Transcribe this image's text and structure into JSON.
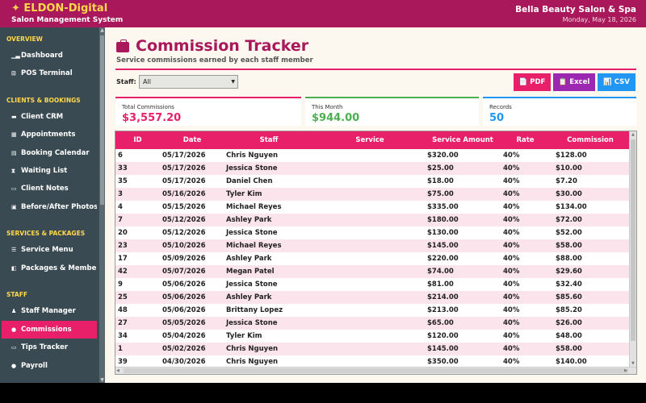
{
  "header": {
    "brand": "✦ ELDON-Digital",
    "brand_sub": "Salon Management System",
    "salon": "Bella Beauty Salon & Spa",
    "date": "Monday, May 18, 2026"
  },
  "sidebar": {
    "sections": [
      {
        "label": "OVERVIEW"
      },
      {
        "label": "CLIENTS & BOOKINGS"
      },
      {
        "label": "SERVICES & PACKAGES"
      },
      {
        "label": "STAFF"
      }
    ],
    "items": [
      {
        "label": "Dashboard",
        "icon": "chart-icon"
      },
      {
        "label": "POS Terminal",
        "icon": "cart-icon"
      },
      {
        "label": "Client CRM",
        "icon": "card-icon"
      },
      {
        "label": "Appointments",
        "icon": "calendar-icon"
      },
      {
        "label": "Booking Calendar",
        "icon": "calendar-grid-icon"
      },
      {
        "label": "Waiting List",
        "icon": "hourglass-icon"
      },
      {
        "label": "Client Notes",
        "icon": "notes-icon"
      },
      {
        "label": "Before/After Photos",
        "icon": "photo-icon"
      },
      {
        "label": "Service Menu",
        "icon": "menu-icon"
      },
      {
        "label": "Packages & Membersh",
        "icon": "package-icon"
      },
      {
        "label": "Staff Manager",
        "icon": "people-icon"
      },
      {
        "label": "Commissions",
        "icon": "money-bag-icon"
      },
      {
        "label": "Tips Tracker",
        "icon": "tips-icon"
      },
      {
        "label": "Payroll",
        "icon": "payroll-icon"
      }
    ],
    "active": "Commissions"
  },
  "page": {
    "title": "Commission Tracker",
    "subtitle": "Service commissions earned by each staff member",
    "filter_label": "Staff:",
    "filter_value": "All"
  },
  "export": {
    "pdf": "📄 PDF",
    "excel": "📋 Excel",
    "csv": "📊 CSV"
  },
  "stats": {
    "total_label": "Total Commissions",
    "total_value": "$3,557.20",
    "month_label": "This Month",
    "month_value": "$944.00",
    "records_label": "Records",
    "records_value": "50"
  },
  "table": {
    "columns": [
      "ID",
      "Date",
      "Staff",
      "Service",
      "Service Amount",
      "Rate",
      "Commission"
    ],
    "rows": [
      {
        "id": "6",
        "date": "05/17/2026",
        "staff": "Chris Nguyen",
        "service": "",
        "amount": "$320.00",
        "rate": "40%",
        "commission": "$128.00"
      },
      {
        "id": "33",
        "date": "05/17/2026",
        "staff": "Jessica Stone",
        "service": "",
        "amount": "$25.00",
        "rate": "40%",
        "commission": "$10.00"
      },
      {
        "id": "35",
        "date": "05/17/2026",
        "staff": "Daniel Chen",
        "service": "",
        "amount": "$18.00",
        "rate": "40%",
        "commission": "$7.20"
      },
      {
        "id": "3",
        "date": "05/16/2026",
        "staff": "Tyler Kim",
        "service": "",
        "amount": "$75.00",
        "rate": "40%",
        "commission": "$30.00"
      },
      {
        "id": "4",
        "date": "05/15/2026",
        "staff": "Michael Reyes",
        "service": "",
        "amount": "$335.00",
        "rate": "40%",
        "commission": "$134.00"
      },
      {
        "id": "7",
        "date": "05/12/2026",
        "staff": "Ashley Park",
        "service": "",
        "amount": "$180.00",
        "rate": "40%",
        "commission": "$72.00"
      },
      {
        "id": "20",
        "date": "05/12/2026",
        "staff": "Jessica Stone",
        "service": "",
        "amount": "$130.00",
        "rate": "40%",
        "commission": "$52.00"
      },
      {
        "id": "23",
        "date": "05/10/2026",
        "staff": "Michael Reyes",
        "service": "",
        "amount": "$145.00",
        "rate": "40%",
        "commission": "$58.00"
      },
      {
        "id": "17",
        "date": "05/09/2026",
        "staff": "Ashley Park",
        "service": "",
        "amount": "$220.00",
        "rate": "40%",
        "commission": "$88.00"
      },
      {
        "id": "42",
        "date": "05/07/2026",
        "staff": "Megan Patel",
        "service": "",
        "amount": "$74.00",
        "rate": "40%",
        "commission": "$29.60"
      },
      {
        "id": "9",
        "date": "05/06/2026",
        "staff": "Jessica Stone",
        "service": "",
        "amount": "$81.00",
        "rate": "40%",
        "commission": "$32.40"
      },
      {
        "id": "25",
        "date": "05/06/2026",
        "staff": "Ashley Park",
        "service": "",
        "amount": "$214.00",
        "rate": "40%",
        "commission": "$85.60"
      },
      {
        "id": "48",
        "date": "05/06/2026",
        "staff": "Brittany Lopez",
        "service": "",
        "amount": "$213.00",
        "rate": "40%",
        "commission": "$85.20"
      },
      {
        "id": "27",
        "date": "05/05/2026",
        "staff": "Jessica Stone",
        "service": "",
        "amount": "$65.00",
        "rate": "40%",
        "commission": "$26.00"
      },
      {
        "id": "34",
        "date": "05/04/2026",
        "staff": "Tyler Kim",
        "service": "",
        "amount": "$120.00",
        "rate": "40%",
        "commission": "$48.00"
      },
      {
        "id": "1",
        "date": "05/02/2026",
        "staff": "Chris Nguyen",
        "service": "",
        "amount": "$145.00",
        "rate": "40%",
        "commission": "$58.00"
      },
      {
        "id": "39",
        "date": "04/30/2026",
        "staff": "Chris Nguyen",
        "service": "",
        "amount": "$350.00",
        "rate": "40%",
        "commission": "$140.00"
      }
    ]
  },
  "colors": {
    "header_bg": "#a8185a",
    "accent": "#e8206a",
    "sidebar_bg": "#3a4a52",
    "section_label": "#ffd84a",
    "green": "#4caf50",
    "blue": "#2196f3",
    "purple": "#9c27b0"
  }
}
